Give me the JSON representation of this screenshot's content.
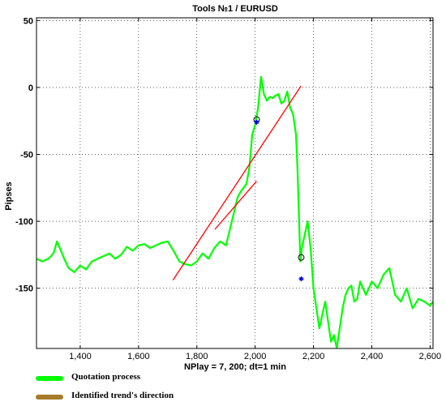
{
  "chart_data": {
    "type": "line",
    "title": "Tools  №1 / EURUSD",
    "xlabel": "NPlay = 7, 200;  dt=1 min",
    "ylabel": "Pipses",
    "xlim": [
      1250,
      2610
    ],
    "ylim": [
      -195,
      52
    ],
    "grid": true,
    "x_ticks": [
      1400,
      1600,
      1800,
      2000,
      2200,
      2400,
      2600
    ],
    "x_tick_labels": [
      "1,400",
      "1,600",
      "1,800",
      "2,000",
      "2,200",
      "2,400",
      "2,600"
    ],
    "y_ticks": [
      50,
      0,
      -50,
      -100,
      -150
    ],
    "y_tick_labels": [
      "50",
      "0",
      "-50",
      "-100",
      "-150"
    ],
    "series": [
      {
        "name": "Quotation process",
        "color": "#00ff00",
        "x": [
          1250,
          1270,
          1290,
          1300,
          1310,
          1320,
          1330,
          1345,
          1360,
          1380,
          1400,
          1420,
          1440,
          1460,
          1480,
          1500,
          1520,
          1540,
          1560,
          1580,
          1600,
          1620,
          1640,
          1660,
          1680,
          1700,
          1720,
          1740,
          1760,
          1780,
          1800,
          1820,
          1840,
          1860,
          1880,
          1900,
          1920,
          1940,
          1950,
          1960,
          1970,
          1980,
          1990,
          2000,
          2010,
          2020,
          2030,
          2040,
          2050,
          2060,
          2070,
          2080,
          2090,
          2100,
          2110,
          2120,
          2130,
          2140,
          2145,
          2150,
          2155,
          2160,
          2170,
          2180,
          2190,
          2200,
          2210,
          2220,
          2230,
          2240,
          2250,
          2260,
          2270,
          2280,
          2290,
          2300,
          2310,
          2320,
          2330,
          2340,
          2350,
          2360,
          2370,
          2380,
          2390,
          2400,
          2420,
          2440,
          2460,
          2480,
          2500,
          2520,
          2540,
          2560,
          2580,
          2600,
          2610
        ],
        "y": [
          -128,
          -130,
          -128,
          -126,
          -123,
          -115,
          -120,
          -128,
          -135,
          -138,
          -133,
          -136,
          -130,
          -128,
          -126,
          -124,
          -128,
          -125,
          -119,
          -122,
          -118,
          -117,
          -120,
          -118,
          -116,
          -115,
          -122,
          -130,
          -132,
          -133,
          -130,
          -124,
          -128,
          -120,
          -115,
          -118,
          -100,
          -82,
          -78,
          -75,
          -72,
          -60,
          -35,
          -28,
          -15,
          8,
          -5,
          -10,
          -7,
          -8,
          -6,
          -5,
          -12,
          -10,
          -3,
          -15,
          -20,
          -35,
          -60,
          -95,
          -130,
          -120,
          -110,
          -100,
          -120,
          -150,
          -165,
          -180,
          -170,
          -160,
          -175,
          -190,
          -185,
          -195,
          -180,
          -165,
          -155,
          -150,
          -148,
          -160,
          -158,
          -145,
          -150,
          -155,
          -150,
          -145,
          -150,
          -140,
          -135,
          -155,
          -160,
          -150,
          -165,
          -158,
          -160,
          -163,
          -160
        ]
      },
      {
        "name": "Identified trend's direction",
        "color": "#ff0000",
        "lines": [
          {
            "x": [
              1718,
              2157
            ],
            "y": [
              -144,
              1
            ]
          },
          {
            "x": [
              1862,
              2005
            ],
            "y": [
              -106,
              -70
            ]
          }
        ]
      }
    ],
    "markers": [
      {
        "type": "circle",
        "x": 2005,
        "y": -24
      },
      {
        "type": "circle",
        "x": 2158,
        "y": -127
      },
      {
        "type": "star",
        "x": 2005,
        "y": -26
      },
      {
        "type": "star",
        "x": 2158,
        "y": -143
      }
    ],
    "legend": {
      "position": "below",
      "items": [
        {
          "label": "Quotation process",
          "color": "#00ff00"
        },
        {
          "label": "Identified trend's direction",
          "color": "#a67c2a"
        }
      ]
    }
  }
}
